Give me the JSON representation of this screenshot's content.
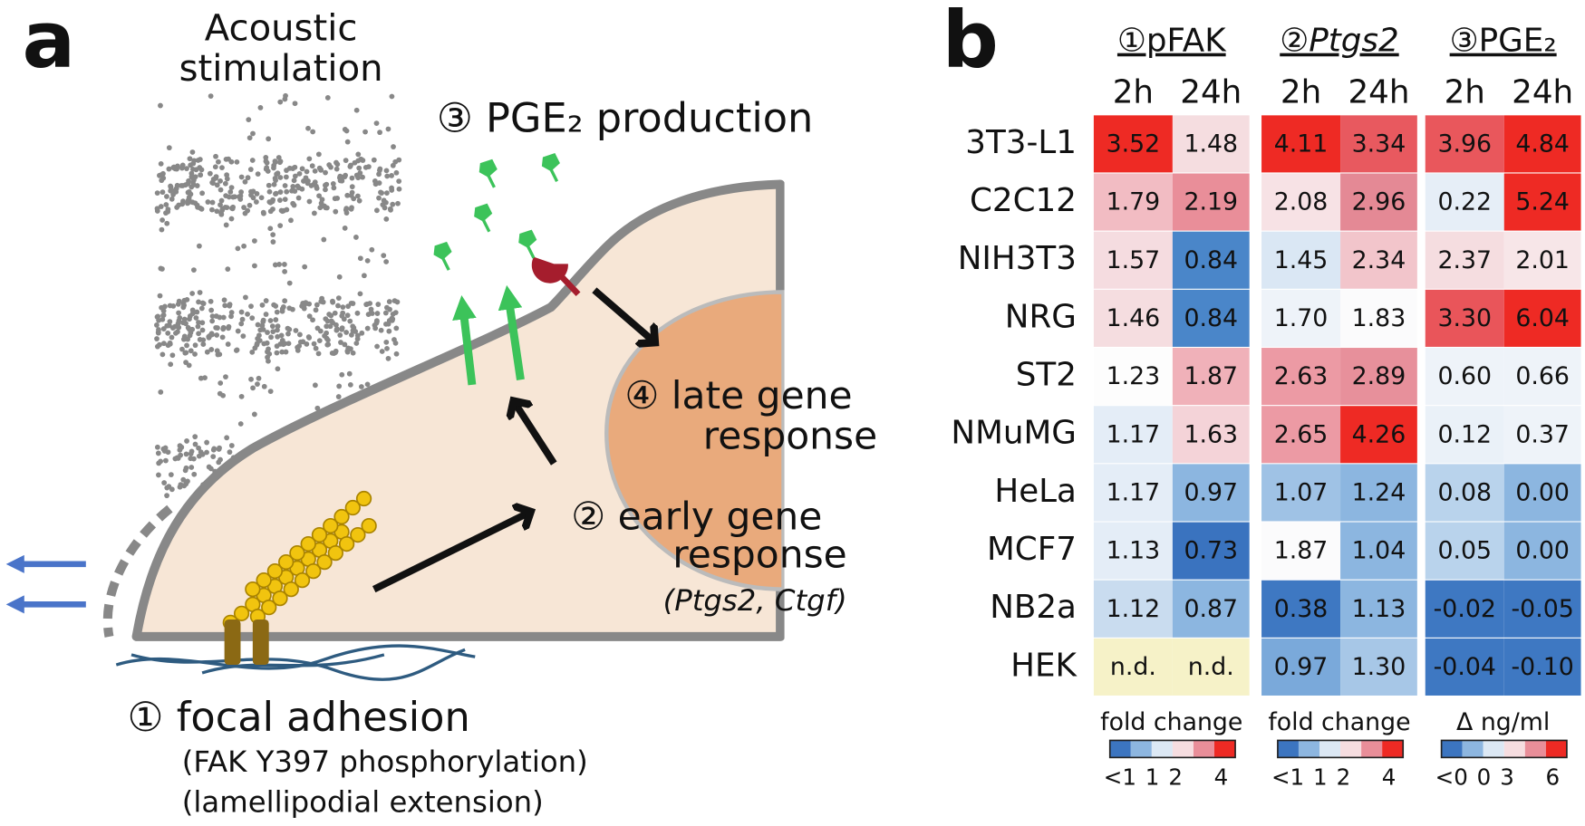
{
  "panel_a": {
    "label": "a",
    "stimulus": [
      "Acoustic",
      "stimulation"
    ],
    "step3": "③ PGE₂ production",
    "step4": [
      "④ late gene",
      "response"
    ],
    "step2": [
      "② early gene",
      "response",
      "(Ptgs2, Ctgf)"
    ],
    "step1": [
      "① focal adhesion",
      "(FAK Y397 phosphorylation)",
      "(lamellipodial extension)"
    ]
  },
  "panel_b": {
    "label": "b",
    "groups": [
      {
        "name": "①pFAK",
        "times": [
          "2h",
          "24h"
        ],
        "legend": {
          "title": "fold change",
          "ticks": [
            "<1",
            "1",
            "2",
            "4"
          ]
        }
      },
      {
        "name": "②Ptgs2",
        "times": [
          "2h",
          "24h"
        ],
        "legend": {
          "title": "fold change",
          "ticks": [
            "<1",
            "1",
            "2",
            "4"
          ]
        }
      },
      {
        "name": "③PGE₂",
        "times": [
          "2h",
          "24h"
        ],
        "legend": {
          "title": "Δ ng/ml",
          "ticks": [
            "<0",
            "0",
            "3",
            "6"
          ]
        }
      }
    ],
    "legend_colors": [
      "#3c75c0",
      "#8db6e0",
      "#dce8f4",
      "#f6dde0",
      "#e98e99",
      "#ee2a24"
    ],
    "rows": [
      {
        "name": "3T3-L1",
        "values": [
          "3.52",
          "1.48",
          "4.11",
          "3.34",
          "3.96",
          "4.84"
        ],
        "colors": [
          "#ee2a24",
          "#f5dde0",
          "#ee2a24",
          "#e8595f",
          "#e9575c",
          "#ee2a24"
        ]
      },
      {
        "name": "C2C12",
        "values": [
          "1.79",
          "2.19",
          "2.08",
          "2.96",
          "0.22",
          "5.24"
        ],
        "colors": [
          "#f2bcc3",
          "#e98e99",
          "#f7e2e5",
          "#e48995",
          "#e6eef7",
          "#ee2a24"
        ]
      },
      {
        "name": "NIH3T3",
        "values": [
          "1.57",
          "0.84",
          "1.45",
          "2.34",
          "2.37",
          "2.01"
        ],
        "colors": [
          "#f5dce0",
          "#4a86c9",
          "#dae7f4",
          "#f2c5cb",
          "#f5dde0",
          "#f7e6e8"
        ]
      },
      {
        "name": "NRG",
        "values": [
          "1.46",
          "0.84",
          "1.70",
          "1.83",
          "3.30",
          "6.04"
        ],
        "colors": [
          "#f5dde0",
          "#4a86c9",
          "#eef3f9",
          "#fbfbfc",
          "#e9555a",
          "#ee2a24"
        ]
      },
      {
        "name": "ST2",
        "values": [
          "1.23",
          "1.87",
          "2.63",
          "2.89",
          "0.60",
          "0.66"
        ],
        "colors": [
          "#fdfdfd",
          "#f0b1b9",
          "#ec9aa4",
          "#e7909b",
          "#eef3f9",
          "#eef3f9"
        ]
      },
      {
        "name": "NMuMG",
        "values": [
          "1.17",
          "1.63",
          "2.65",
          "4.26",
          "0.12",
          "0.37"
        ],
        "colors": [
          "#e4edf7",
          "#f4d3d8",
          "#ec9aa4",
          "#ee2a24",
          "#eaf1f8",
          "#eef3f9"
        ]
      },
      {
        "name": "HeLa",
        "values": [
          "1.17",
          "0.97",
          "1.07",
          "1.24",
          "0.08",
          "0.00"
        ],
        "colors": [
          "#e4edf7",
          "#8cb6e0",
          "#9fc2e5",
          "#8cb6e0",
          "#b9d3ec",
          "#8cb6e0"
        ]
      },
      {
        "name": "MCF7",
        "values": [
          "1.13",
          "0.73",
          "1.87",
          "1.04",
          "0.05",
          "0.00"
        ],
        "colors": [
          "#e4edf7",
          "#3a73bf",
          "#fbfbfc",
          "#8cb6e0",
          "#b9d3ec",
          "#8cb6e0"
        ]
      },
      {
        "name": "NB2a",
        "values": [
          "1.12",
          "0.87",
          "0.38",
          "1.13",
          "-0.02",
          "-0.05"
        ],
        "colors": [
          "#c9dcef",
          "#8cb6e0",
          "#3e78c2",
          "#8cb6e0",
          "#3e78c2",
          "#3e78c2"
        ]
      },
      {
        "name": "HEK",
        "values": [
          "n.d.",
          "n.d.",
          "0.97",
          "1.30",
          "-0.04",
          "-0.10"
        ],
        "colors": [
          "#f6f2c8",
          "#f6f2c8",
          "#7aa9da",
          "#a7c7e7",
          "#3e78c2",
          "#3e78c2"
        ]
      }
    ]
  }
}
